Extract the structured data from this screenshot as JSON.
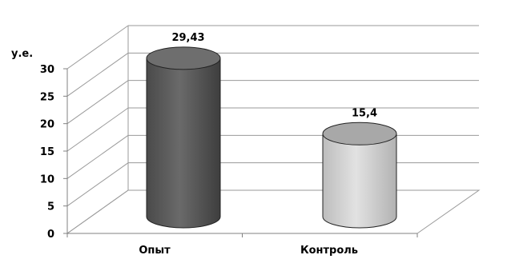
{
  "chart_data": {
    "type": "bar",
    "title": "",
    "xlabel": "",
    "ylabel": "у.е.",
    "ylim": [
      0,
      30
    ],
    "yticks": [
      0,
      5,
      10,
      15,
      20,
      25,
      30
    ],
    "categories": [
      "Опыт",
      "Контроль"
    ],
    "values": [
      29.43,
      15.4
    ],
    "data_labels": [
      "29,43",
      "15,4"
    ],
    "bar_shape": "cylinder",
    "grid": true,
    "colors": {
      "bar_1": "#5a5a5a",
      "bar_1_top": "#6e6e6e",
      "bar_2": "#c8c8c8",
      "bar_2_top": "#a8a8a8",
      "grid": "#9a9a9a"
    }
  }
}
